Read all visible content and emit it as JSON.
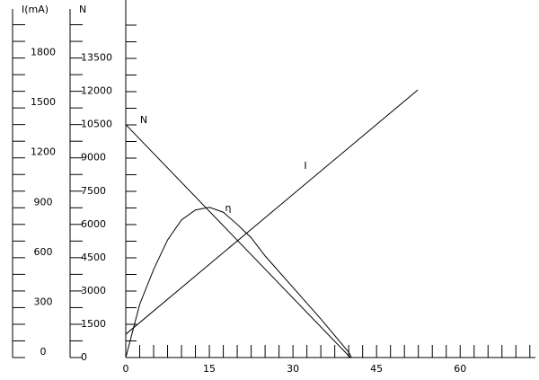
{
  "chart_data": {
    "type": "line",
    "ylabel": "I(mA)",
    "y2label": "N",
    "xlim": [
      0,
      73.5
    ],
    "xticks": [
      0,
      15,
      30,
      45,
      60
    ],
    "xminorticks": [
      2.5,
      5,
      7.5,
      10,
      12.5,
      17.5,
      20,
      22.5,
      25,
      27.5,
      32.5,
      35,
      37.5,
      40,
      42.5,
      47.5,
      50,
      52.5,
      55,
      57.5,
      62.5,
      65,
      67.5,
      70,
      72.5
    ],
    "ylim": [
      0,
      2100
    ],
    "yticks": [
      0,
      300,
      600,
      900,
      1200,
      1500,
      1800
    ],
    "yminorticks": [
      100,
      200,
      400,
      500,
      700,
      800,
      1000,
      1100,
      1300,
      1400,
      1600,
      1700,
      1900,
      2000
    ],
    "y2lim": [
      0,
      15750
    ],
    "y2ticks": [
      0,
      1500,
      3000,
      4500,
      6000,
      7500,
      9000,
      10500,
      12000,
      13500
    ],
    "y2minorticks": [
      750,
      2250,
      3750,
      5250,
      6750,
      8250,
      9750,
      11250,
      12750,
      14250,
      15000
    ],
    "series": [
      {
        "name": "N",
        "color": "#000000",
        "axis": "y2",
        "x": [
          0,
          40.3
        ],
        "values": [
          10500,
          0
        ]
      },
      {
        "name": "I",
        "color": "#000000",
        "axis": "y",
        "x": [
          0,
          52.4
        ],
        "values": [
          140,
          1608
        ]
      },
      {
        "name": "η",
        "color": "#000000",
        "axis": "y2",
        "x": [
          0,
          2.5,
          5,
          7.5,
          10,
          12.5,
          15,
          17.5,
          20,
          22.5,
          25,
          30,
          35,
          40,
          40.5
        ],
        "values": [
          0,
          2400,
          3970,
          5300,
          6200,
          6650,
          6770,
          6550,
          6000,
          5400,
          4580,
          3160,
          1740,
          240,
          0
        ]
      }
    ]
  }
}
